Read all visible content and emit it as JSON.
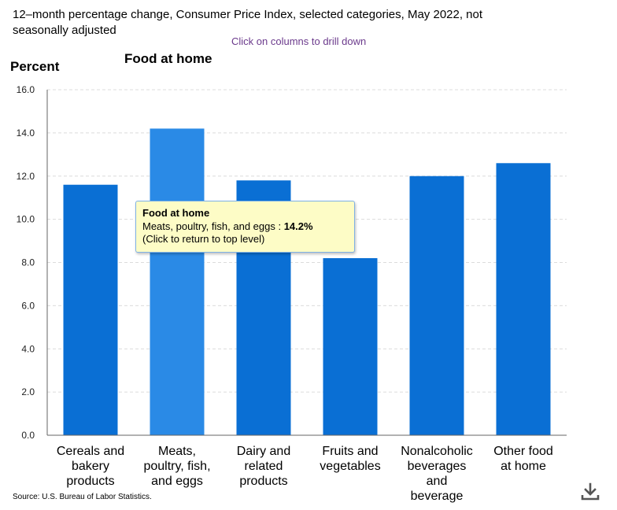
{
  "header": {
    "title": "12–month percentage change, Consumer Price Index, selected categories, May 2022, not seasonally adjusted",
    "drill_hint": "Click on columns to drill down"
  },
  "footer": {
    "source": "Source: U.S. Bureau of Labor Statistics.",
    "download_icon": "download-icon"
  },
  "tooltip": {
    "title": "Food at home",
    "label": "Meats, poultry, fish, and eggs : ",
    "value": "14.2%",
    "hint": "(Click to return to top level)"
  },
  "colors": {
    "bar": "#0a6fd4",
    "bar_highlight": "#2a8ae6",
    "tooltip_bg": "#fdfcc6",
    "tooltip_border": "#7fb2e5"
  },
  "chart_data": {
    "type": "bar",
    "title": "Food at home",
    "ylabel": "Percent",
    "xlabel": "",
    "ylim": [
      0,
      16
    ],
    "yticks": [
      "0.0",
      "2.0",
      "4.0",
      "6.0",
      "8.0",
      "10.0",
      "12.0",
      "14.0",
      "16.0"
    ],
    "grid": true,
    "categories": [
      [
        "Cereals and",
        "bakery",
        "products"
      ],
      [
        "Meats,",
        "poultry, fish,",
        "and eggs"
      ],
      [
        "Dairy and",
        "related",
        "products"
      ],
      [
        "Fruits and",
        "vegetables"
      ],
      [
        "Nonalcoholic",
        "beverages",
        "and",
        "beverage"
      ],
      [
        "Other food",
        "at home"
      ]
    ],
    "values": [
      11.6,
      14.2,
      11.8,
      8.2,
      12.0,
      12.6
    ],
    "highlighted_index": 1
  }
}
